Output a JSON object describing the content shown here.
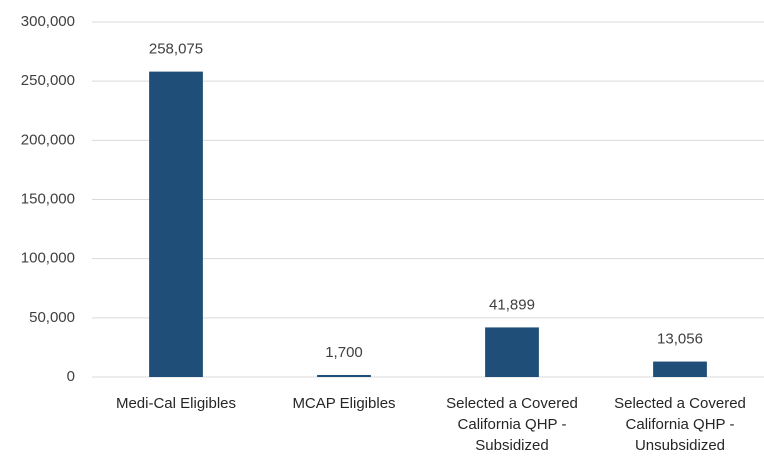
{
  "chart_data": {
    "type": "bar",
    "categories": [
      "Medi-Cal Eligibles",
      "MCAP Eligibles",
      "Selected a Covered California QHP - Subsidized",
      "Selected a Covered California QHP - Unsubsidized"
    ],
    "values": [
      258075,
      1700,
      41899,
      13056
    ],
    "value_labels": [
      "258,075",
      "1,700",
      "41,899",
      "13,056"
    ],
    "color": "#1f4e79",
    "ylim": [
      0,
      300000
    ],
    "yticks": [
      0,
      {
        "value": 50000,
        "label": "50,000"
      },
      {
        "value": 100000,
        "label": "100,000"
      },
      {
        "value": 150000,
        "label": "150,000"
      },
      {
        "value": 200000,
        "label": "200,000"
      },
      {
        "value": 250000,
        "label": "250,000"
      },
      {
        "value": 300000,
        "label": "300,000"
      }
    ],
    "grid": true
  }
}
